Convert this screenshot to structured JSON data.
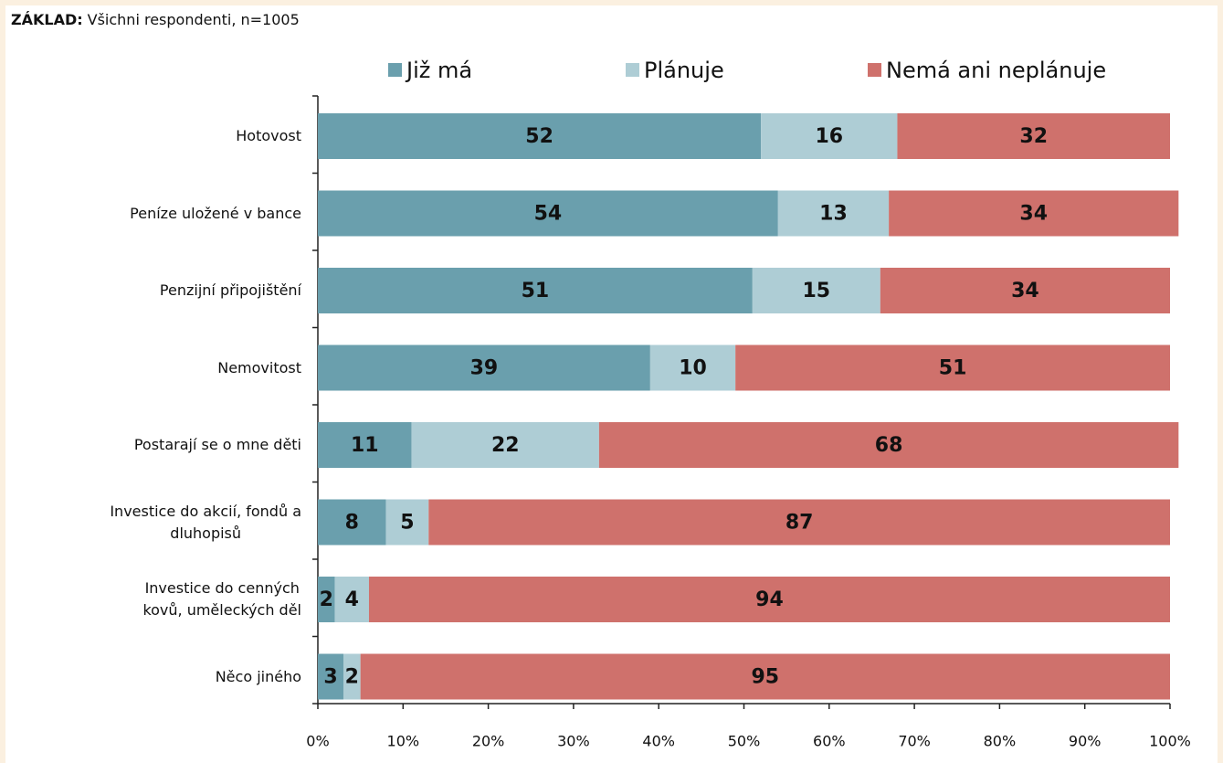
{
  "chart_data": {
    "type": "stacked-barh",
    "base_label": "ZÁKLAD:",
    "base_text": "Všichni respondenti, n=1005",
    "categories": [
      "Hotovost",
      "Peníze uložené v bance",
      "Penzijní připojištění",
      "Nemovitost",
      "Postarají se o mne děti",
      "Investice do akcií, fondů a\ndluhopisů",
      "Investice do cenných\nkovů, uměleckých děl",
      "Něco jiného"
    ],
    "series": [
      {
        "name": "Již má",
        "color": "#6a9fad",
        "values": [
          52,
          54,
          51,
          39,
          11,
          8,
          2,
          3
        ]
      },
      {
        "name": "Plánuje",
        "color": "#aecdd5",
        "values": [
          16,
          13,
          15,
          10,
          22,
          5,
          4,
          2
        ]
      },
      {
        "name": "Nemá ani neplánuje",
        "color": "#cf716c",
        "values": [
          32,
          34,
          34,
          51,
          68,
          87,
          94,
          95
        ]
      }
    ],
    "xlim": [
      0,
      100
    ],
    "xticks": [
      {
        "value": 0,
        "label": "0%"
      },
      {
        "value": 10,
        "label": "10%"
      },
      {
        "value": 20,
        "label": "20%"
      },
      {
        "value": 30,
        "label": "30%"
      },
      {
        "value": 40,
        "label": "40%"
      },
      {
        "value": 50,
        "label": "50%"
      },
      {
        "value": 60,
        "label": "60%"
      },
      {
        "value": 70,
        "label": "70%"
      },
      {
        "value": 80,
        "label": "80%"
      },
      {
        "value": 90,
        "label": "90%"
      },
      {
        "value": 100,
        "label": "100%"
      }
    ]
  }
}
